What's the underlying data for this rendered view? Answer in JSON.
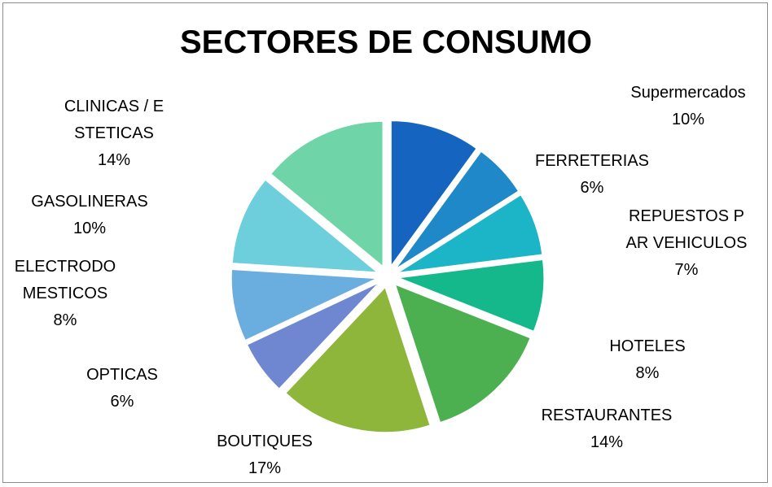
{
  "chart_data": {
    "type": "pie",
    "title": "SECTORES DE CONSUMO",
    "categories": [
      "Supermercados",
      "FERRETERIAS",
      "REPUESTOS PAR VEHICULOS",
      "HOTELES",
      "RESTAURANTES",
      "BOUTIQUES",
      "OPTICAS",
      "ELECTRODOMESTICOS",
      "GASOLINERAS",
      "CLINICAS / ESTETICAS"
    ],
    "values": [
      10,
      6,
      7,
      8,
      14,
      17,
      6,
      8,
      10,
      14
    ],
    "value_labels": [
      "10%",
      "6%",
      "7%",
      "8%",
      "14%",
      "17%",
      "6%",
      "8%",
      "10%",
      "14%"
    ],
    "colors": [
      "#1565c0",
      "#1e88c8",
      "#1cb5c8",
      "#14b88a",
      "#4caf50",
      "#8db63a",
      "#6f87d0",
      "#6aaee0",
      "#6ccfdb",
      "#6fd4a8"
    ]
  }
}
